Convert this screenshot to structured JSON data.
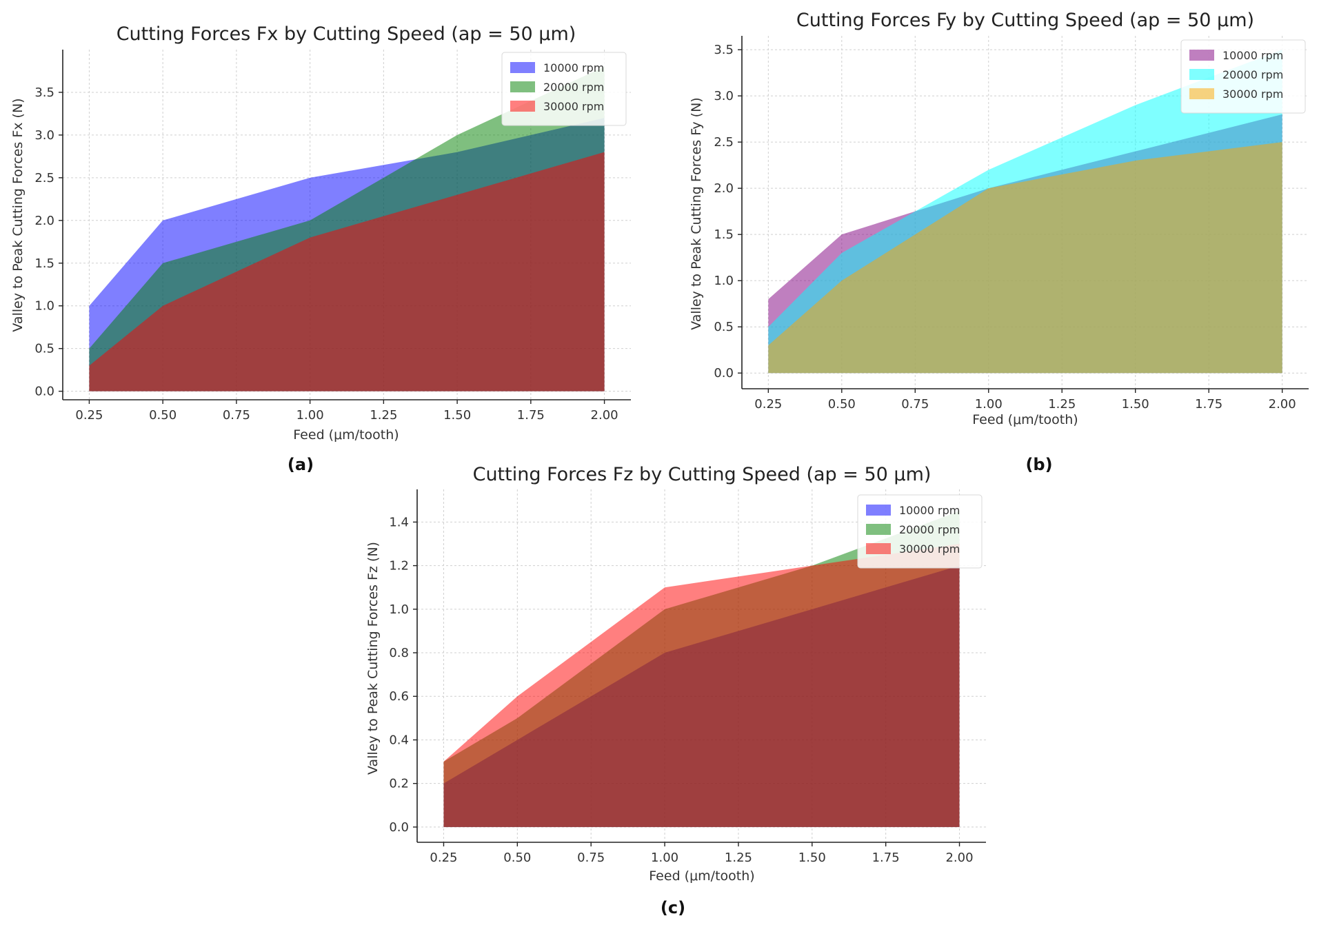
{
  "chart_data": [
    {
      "type": "area",
      "panel_label": "(a)",
      "title": "Cutting Forces Fx by Cutting Speed (ap = 50 μm)",
      "xlabel": "Feed (μm/tooth)",
      "ylabel": "Valley to Peak Cutting Forces Fx (N)",
      "x": [
        0.25,
        0.5,
        1.0,
        1.5,
        2.0
      ],
      "xticks": [
        0.25,
        0.5,
        0.75,
        1.0,
        1.25,
        1.5,
        1.75,
        2.0
      ],
      "xtick_labels": [
        "0.25",
        "0.50",
        "0.75",
        "1.00",
        "1.25",
        "1.50",
        "1.75",
        "2.00"
      ],
      "yticks": [
        0,
        0.5,
        1.0,
        1.5,
        2.0,
        2.5,
        3.0,
        3.5
      ],
      "ytick_labels": [
        "0.0",
        "0.5",
        "1.0",
        "1.5",
        "2.0",
        "2.5",
        "3.0",
        "3.5"
      ],
      "xlim": [
        0.16,
        2.09
      ],
      "ylim": [
        -0.1,
        4.0
      ],
      "grid": true,
      "legend_position": "top-right",
      "series": [
        {
          "name": "10000 rpm",
          "values": [
            1.0,
            2.0,
            2.5,
            2.8,
            3.2
          ],
          "color": "#0000ff"
        },
        {
          "name": "20000 rpm",
          "values": [
            0.5,
            1.5,
            2.0,
            3.0,
            3.8
          ],
          "color": "#008000"
        },
        {
          "name": "30000 rpm",
          "values": [
            0.3,
            1.0,
            1.8,
            2.3,
            2.8
          ],
          "color": "#ff0000"
        }
      ]
    },
    {
      "type": "area",
      "panel_label": "(b)",
      "title": "Cutting Forces Fy by Cutting Speed (ap = 50 μm)",
      "xlabel": "Feed (μm/tooth)",
      "ylabel": "Valley to Peak Cutting Forces Fy (N)",
      "x": [
        0.25,
        0.5,
        1.0,
        1.5,
        2.0
      ],
      "xticks": [
        0.25,
        0.5,
        0.75,
        1.0,
        1.25,
        1.5,
        1.75,
        2.0
      ],
      "xtick_labels": [
        "0.25",
        "0.50",
        "0.75",
        "1.00",
        "1.25",
        "1.50",
        "1.75",
        "2.00"
      ],
      "yticks": [
        0,
        0.5,
        1.0,
        1.5,
        2.0,
        2.5,
        3.0,
        3.5
      ],
      "ytick_labels": [
        "0.0",
        "0.5",
        "1.0",
        "1.5",
        "2.0",
        "2.5",
        "3.0",
        "3.5"
      ],
      "xlim": [
        0.16,
        2.09
      ],
      "ylim": [
        -0.17,
        3.65
      ],
      "grid": true,
      "legend_position": "top-right",
      "series": [
        {
          "name": "10000 rpm",
          "values": [
            0.8,
            1.5,
            2.0,
            2.4,
            2.8
          ],
          "color": "#800080"
        },
        {
          "name": "20000 rpm",
          "values": [
            0.5,
            1.3,
            2.2,
            2.9,
            3.5
          ],
          "color": "#00ffff"
        },
        {
          "name": "30000 rpm",
          "values": [
            0.3,
            1.0,
            2.0,
            2.3,
            2.5
          ],
          "color": "#ffa500"
        }
      ]
    },
    {
      "type": "area",
      "panel_label": "(c)",
      "title": "Cutting Forces Fz by Cutting Speed (ap = 50 μm)",
      "xlabel": "Feed (μm/tooth)",
      "ylabel": "Valley to Peak Cutting Forces Fz (N)",
      "x": [
        0.25,
        0.5,
        1.0,
        1.5,
        2.0
      ],
      "xticks": [
        0.25,
        0.5,
        0.75,
        1.0,
        1.25,
        1.5,
        1.75,
        2.0
      ],
      "xtick_labels": [
        "0.25",
        "0.50",
        "0.75",
        "1.00",
        "1.25",
        "1.50",
        "1.75",
        "2.00"
      ],
      "yticks": [
        0,
        0.2,
        0.4,
        0.6,
        0.8,
        1.0,
        1.2,
        1.4
      ],
      "ytick_labels": [
        "0.0",
        "0.2",
        "0.4",
        "0.6",
        "0.8",
        "1.0",
        "1.2",
        "1.4"
      ],
      "xlim": [
        0.16,
        2.09
      ],
      "ylim": [
        -0.07,
        1.55
      ],
      "grid": true,
      "legend_position": "top-right",
      "series": [
        {
          "name": "10000 rpm",
          "values": [
            0.2,
            0.4,
            0.8,
            1.0,
            1.2
          ],
          "color": "#0000ff"
        },
        {
          "name": "20000 rpm",
          "values": [
            0.3,
            0.5,
            1.0,
            1.2,
            1.45
          ],
          "color": "#008000"
        },
        {
          "name": "30000 rpm",
          "values": [
            0.3,
            0.6,
            1.1,
            1.2,
            1.3
          ],
          "color": "#ff0000"
        }
      ]
    }
  ]
}
